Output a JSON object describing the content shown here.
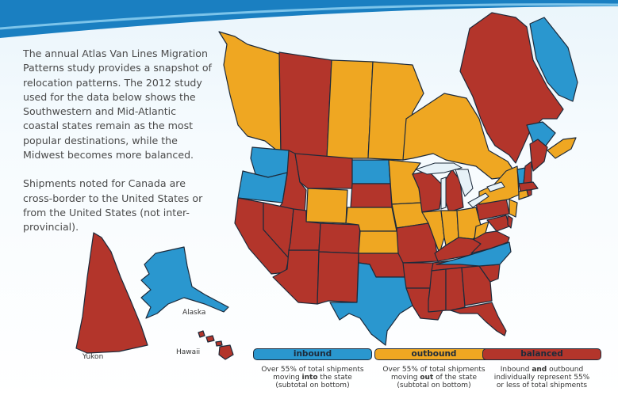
{
  "intro": {
    "paragraph1": "The annual Atlas Van Lines Migration Patterns study provides a snapshot of relocation patterns. The 2012 study used for the data below shows the Southwestern and Mid-Atlantic coastal states remain as the most popular destinations, while the Midwest becomes more balanced.",
    "paragraph2": "Shipments noted for Canada are cross-border to the United States or from the United States (not inter-provincial)."
  },
  "map_labels": {
    "alaska": "Alaska",
    "hawaii": "Hawaii",
    "yukon": "Yukon"
  },
  "colors": {
    "inbound": "#2a97cf",
    "outbound": "#efa722",
    "balanced": "#b3352b",
    "border": "#1d2a3a"
  },
  "legend": {
    "inbound": {
      "label": "inbound",
      "desc_pre": "Over 55% of total shipments moving ",
      "desc_bold": "into",
      "desc_post": " the state",
      "note": "(subtotal on bottom)"
    },
    "outbound": {
      "label": "outbound",
      "desc_pre": "Over 55% of total shipments moving ",
      "desc_bold": "out",
      "desc_post": " of the state",
      "note": "(subtotal on bottom)"
    },
    "balanced": {
      "label": "balanced",
      "desc_pre": "Inbound ",
      "desc_bold": "and",
      "desc_post": " outbound individually represent 55%",
      "note": "or less of total shipments"
    }
  },
  "regions": {
    "Yukon": "balanced",
    "Alaska": "inbound",
    "Hawaii": "balanced",
    "British Columbia": "outbound",
    "Alberta": "balanced",
    "Saskatchewan": "outbound",
    "Manitoba": "outbound",
    "Ontario": "outbound",
    "Quebec": "balanced",
    "Newfoundland and Labrador": "inbound",
    "New Brunswick": "inbound",
    "Nova Scotia": "outbound",
    "Washington": "inbound",
    "Oregon": "inbound",
    "California": "balanced",
    "Idaho": "balanced",
    "Nevada": "balanced",
    "Arizona": "balanced",
    "Montana": "balanced",
    "Wyoming": "outbound",
    "Utah": "balanced",
    "Colorado": "balanced",
    "New Mexico": "balanced",
    "North Dakota": "inbound",
    "South Dakota": "balanced",
    "Nebraska": "outbound",
    "Kansas": "outbound",
    "Oklahoma": "balanced",
    "Texas": "inbound",
    "Minnesota": "outbound",
    "Iowa": "outbound",
    "Missouri": "balanced",
    "Arkansas": "balanced",
    "Louisiana": "balanced",
    "Wisconsin": "balanced",
    "Illinois": "outbound",
    "Michigan": "balanced",
    "Indiana": "outbound",
    "Ohio": "outbound",
    "Kentucky": "balanced",
    "Tennessee": "balanced",
    "Mississippi": "balanced",
    "Alabama": "balanced",
    "Georgia": "balanced",
    "Florida": "balanced",
    "South Carolina": "balanced",
    "North Carolina": "inbound",
    "Virginia": "balanced",
    "West Virginia": "outbound",
    "Pennsylvania": "balanced",
    "New York": "outbound",
    "New Jersey": "outbound",
    "Maryland": "balanced",
    "Delaware": "balanced",
    "Vermont": "inbound",
    "New Hampshire": "balanced",
    "Maine": "balanced",
    "Massachusetts": "balanced",
    "Connecticut": "outbound",
    "Rhode Island": "balanced"
  }
}
